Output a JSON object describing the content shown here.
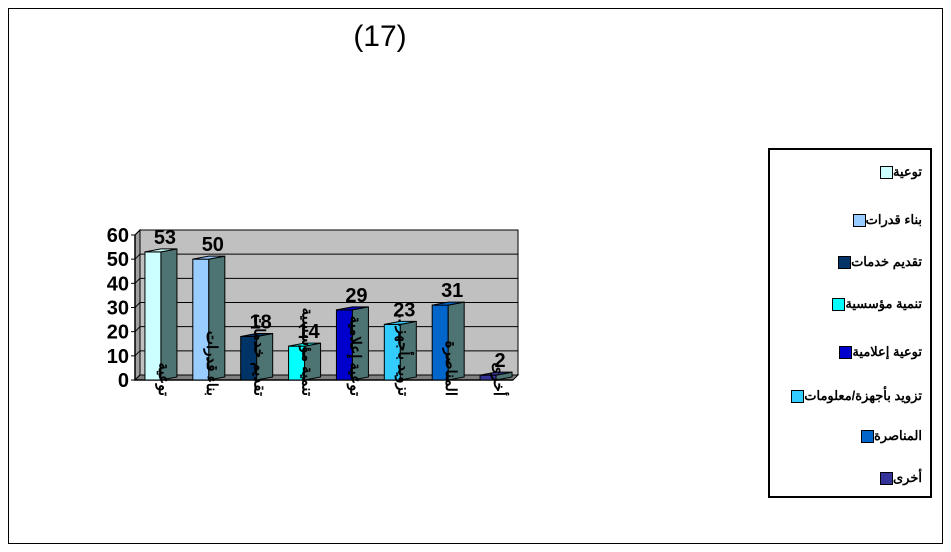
{
  "page_title": "(17)",
  "chart_data": {
    "type": "bar",
    "title": "",
    "categories": [
      "توعية",
      "بناء قدرات",
      "تقديم خدمات",
      "تنمية مؤسسية",
      "توعية إعلامية",
      "تزويد بأجهز...",
      "المناصرة",
      "أخرى"
    ],
    "values": [
      53,
      50,
      18,
      14,
      29,
      23,
      31,
      2
    ],
    "ylim": [
      0,
      60
    ],
    "yticks": [
      0,
      10,
      20,
      30,
      40,
      50,
      60
    ],
    "grid": true,
    "colors": [
      "#ccffff",
      "#99ccff",
      "#003366",
      "#00ffff",
      "#0000cc",
      "#33ccff",
      "#0066cc",
      "#333399"
    ],
    "side_color": "#4d7373",
    "plot_background": "#c0c0c0",
    "legend": {
      "placement": "right",
      "entries": [
        "توعية",
        "بناء قدرات",
        "تقديم خدمات",
        "تنمية مؤسسية",
        "توعية إعلامية",
        "تزويد بأجهزة/معلومات",
        "المناصرة",
        "أخرى"
      ]
    }
  }
}
